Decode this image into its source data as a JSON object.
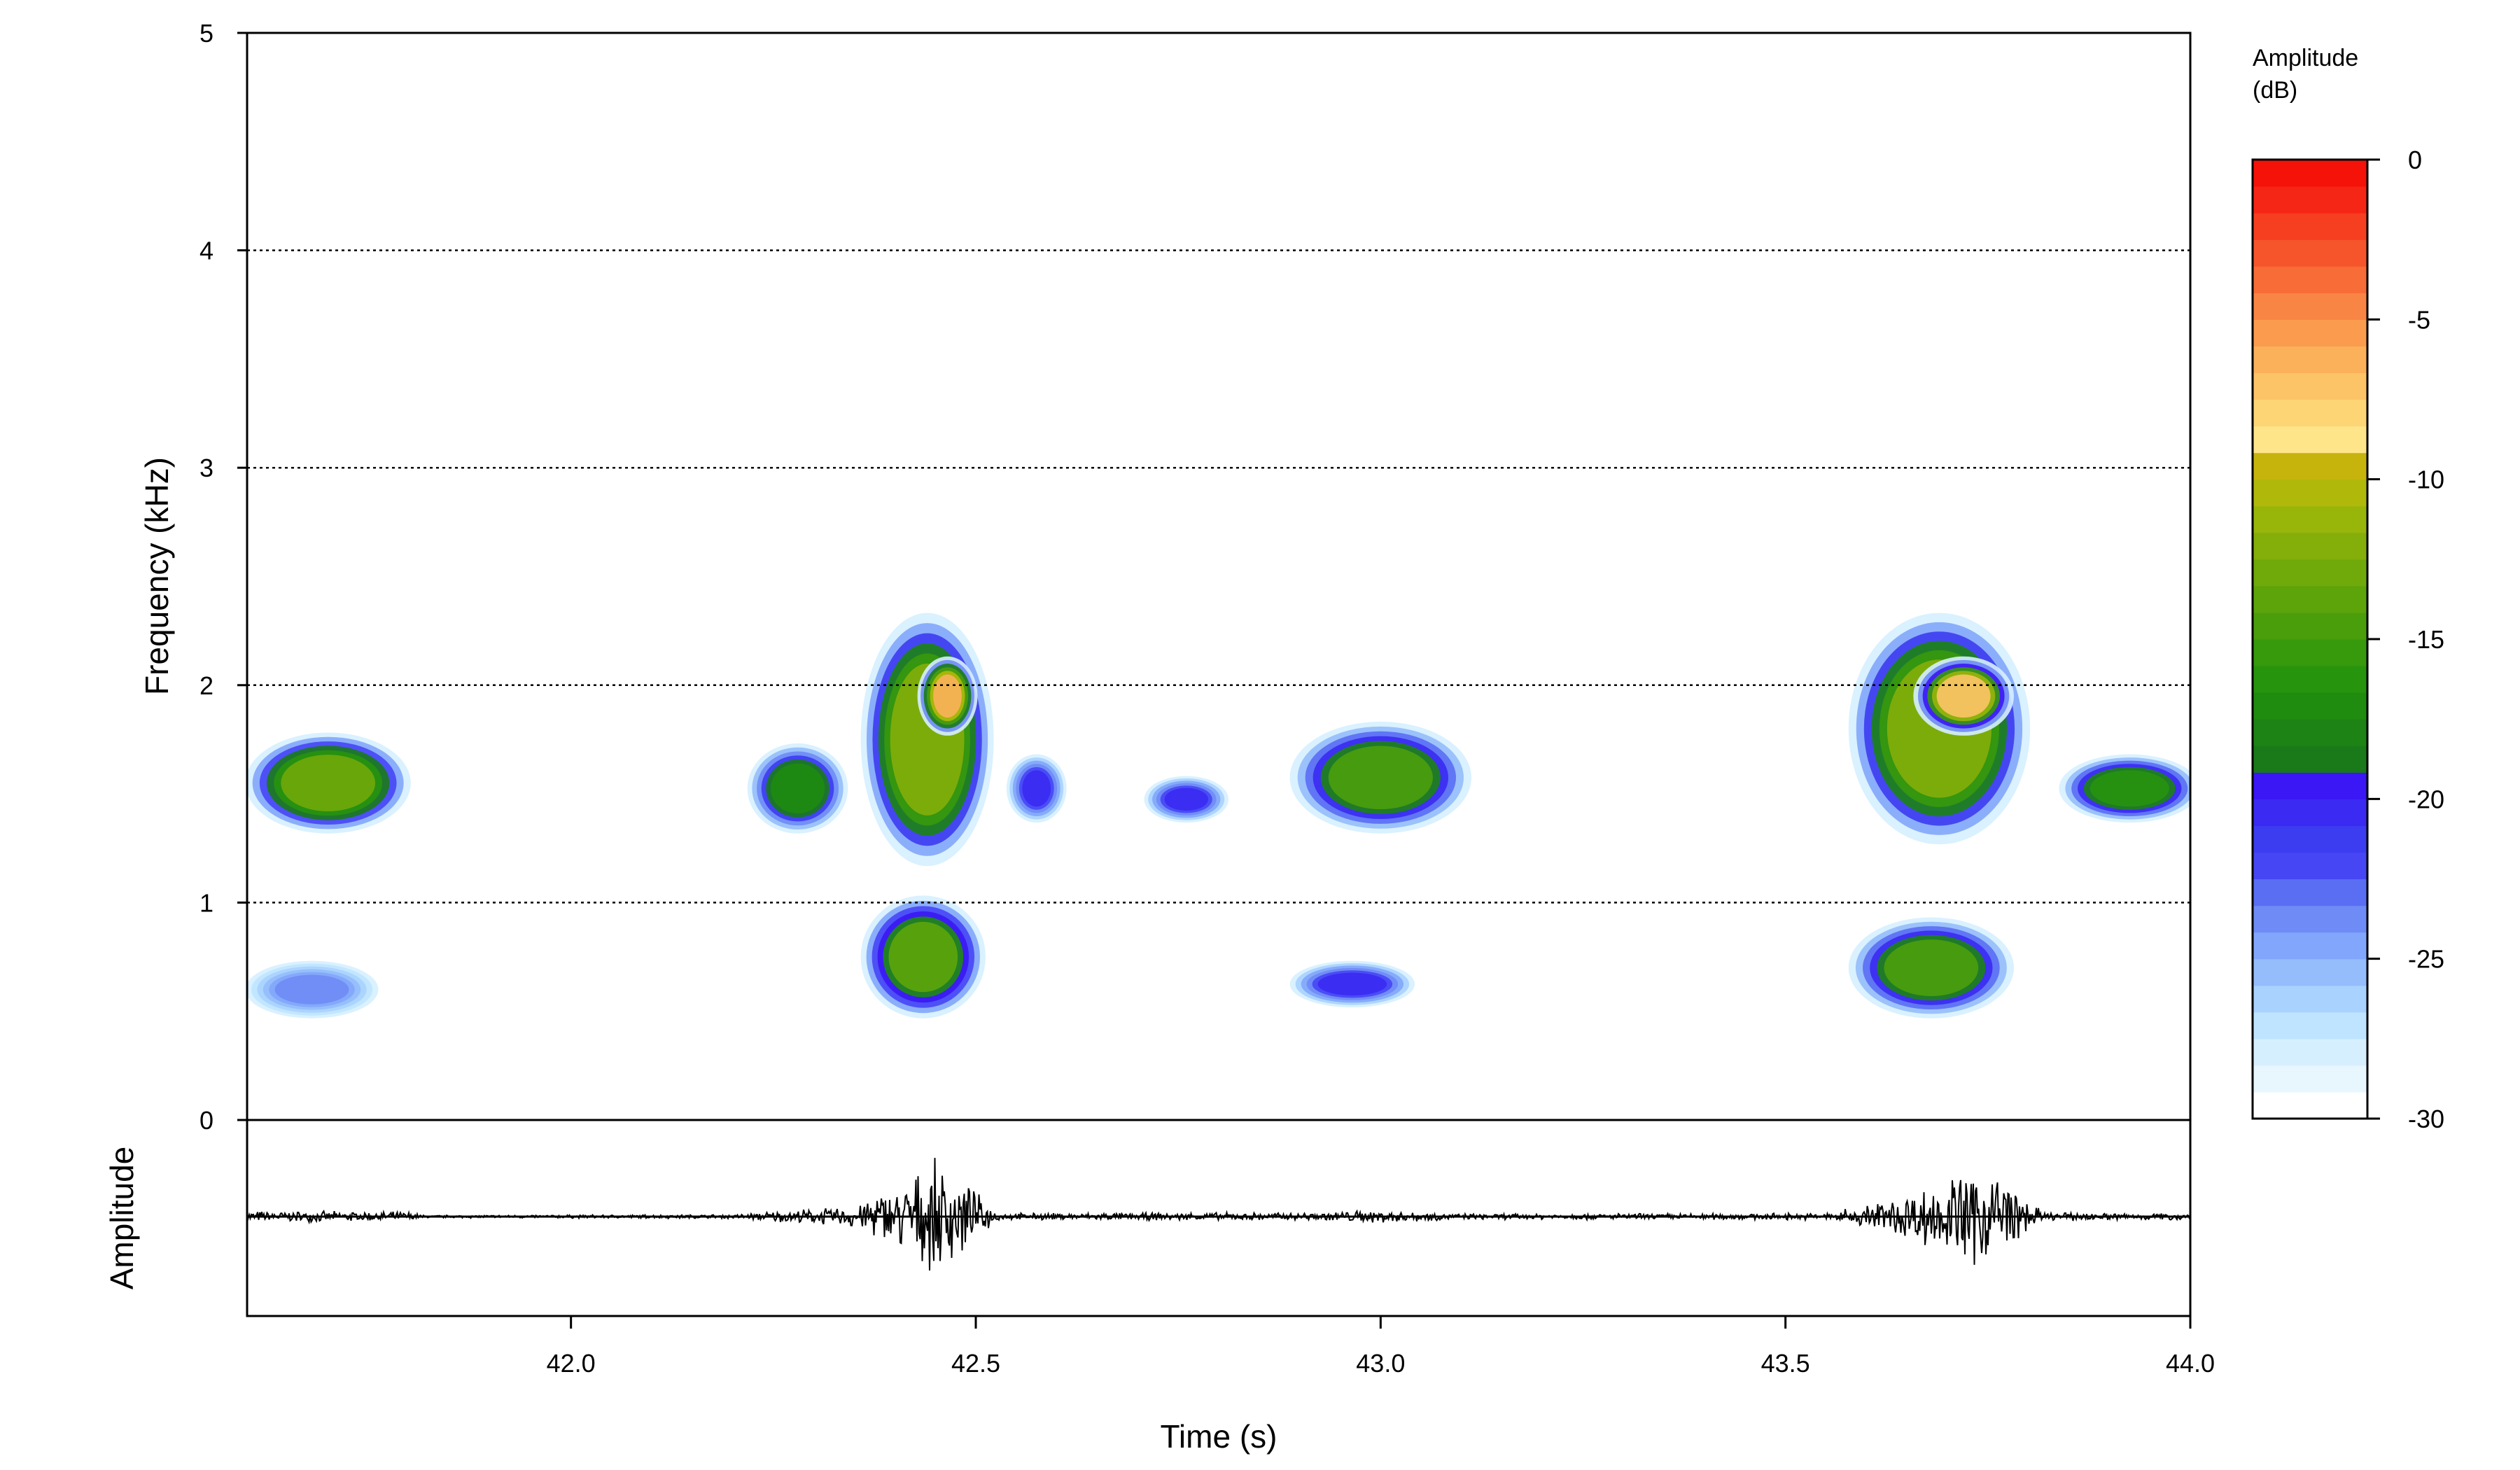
{
  "chart_data": {
    "type": "spectrogram",
    "xlabel": "Time (s)",
    "spectrogram": {
      "ylabel": "Frequency (kHz)",
      "ylim": [
        0,
        5
      ],
      "yticks": [
        "0",
        "1",
        "2",
        "3",
        "4",
        "5"
      ],
      "grid_lines_khz": [
        1,
        2,
        3,
        4
      ],
      "grid_style": "dotted horizontal"
    },
    "oscillogram": {
      "ylabel": "Amplitude"
    },
    "xlim": [
      41.6,
      44.0
    ],
    "xticks": [
      {
        "value": 42.0,
        "label": "42.0"
      },
      {
        "value": 42.5,
        "label": "42.5"
      },
      {
        "value": 43.0,
        "label": "43.0"
      },
      {
        "value": 43.5,
        "label": "43.5"
      },
      {
        "value": 44.0,
        "label": "44.0"
      }
    ],
    "colorbar": {
      "title_lines": [
        "Amplitude",
        "(dB)"
      ],
      "range": [
        -30,
        0
      ],
      "ticks": [
        "0",
        "-5",
        "-10",
        "-15",
        "-20",
        "-25",
        "-30"
      ],
      "tick_values": [
        0,
        -5,
        -10,
        -15,
        -20,
        -25,
        -30
      ],
      "levels": 30,
      "colors": [
        "#ffffff",
        "#e8f6fe",
        "#d6efff",
        "#bfe4ff",
        "#a9d2ff",
        "#95bcfb",
        "#82a6fb",
        "#6f8bf6",
        "#5a6ef4",
        "#4646f5",
        "#3c3cf0",
        "#3a2af2",
        "#3a17f4",
        "#1a7a1a",
        "#1c8314",
        "#1f8c10",
        "#27940e",
        "#37990c",
        "#4a9e0b",
        "#5da40b",
        "#70a90a",
        "#84ae0a",
        "#98b50a",
        "#b0b90a",
        "#c6b30c",
        "#ffe58a",
        "#fdd575",
        "#fcc466",
        "#fbb15a",
        "#fa9b4e",
        "#f98545",
        "#f76c37",
        "#f6552c",
        "#f63e20",
        "#f52615",
        "#f51209"
      ]
    },
    "hotspots_note": "",
    "energy_regions": [
      {
        "t0": 41.61,
        "t1": 41.79,
        "f0": 1.35,
        "f1": 1.75,
        "db": -13
      },
      {
        "t0": 41.61,
        "t1": 41.75,
        "f0": 0.5,
        "f1": 0.7,
        "db": -24
      },
      {
        "t0": 42.23,
        "t1": 42.33,
        "f0": 1.35,
        "f1": 1.7,
        "db": -17
      },
      {
        "t0": 42.37,
        "t1": 42.51,
        "f0": 1.2,
        "f1": 2.3,
        "db": -12
      },
      {
        "t0": 42.44,
        "t1": 42.49,
        "f0": 1.8,
        "f1": 2.1,
        "db": -6
      },
      {
        "t0": 42.37,
        "t1": 42.5,
        "f0": 0.5,
        "f1": 1.0,
        "db": -14
      },
      {
        "t0": 42.55,
        "t1": 42.6,
        "f0": 1.4,
        "f1": 1.65,
        "db": -21
      },
      {
        "t0": 42.72,
        "t1": 42.8,
        "f0": 1.4,
        "f1": 1.55,
        "db": -21
      },
      {
        "t0": 42.9,
        "t1": 43.1,
        "f0": 1.35,
        "f1": 1.8,
        "db": -15
      },
      {
        "t0": 42.9,
        "t1": 43.03,
        "f0": 0.55,
        "f1": 0.7,
        "db": -21
      },
      {
        "t0": 43.59,
        "t1": 43.79,
        "f0": 1.3,
        "f1": 2.3,
        "db": -12
      },
      {
        "t0": 43.67,
        "t1": 43.77,
        "f0": 1.8,
        "f1": 2.1,
        "db": -7
      },
      {
        "t0": 43.59,
        "t1": 43.77,
        "f0": 0.5,
        "f1": 0.9,
        "db": -15
      },
      {
        "t0": 43.85,
        "t1": 44.0,
        "f0": 1.4,
        "f1": 1.65,
        "db": -16
      }
    ],
    "waveform_envelope": [
      {
        "t": 41.6,
        "a": 0.08
      },
      {
        "t": 41.8,
        "a": 0.07
      },
      {
        "t": 41.82,
        "a": 0.02
      },
      {
        "t": 42.2,
        "a": 0.03
      },
      {
        "t": 42.25,
        "a": 0.08
      },
      {
        "t": 42.34,
        "a": 0.14
      },
      {
        "t": 42.4,
        "a": 0.45
      },
      {
        "t": 42.46,
        "a": 0.85
      },
      {
        "t": 42.5,
        "a": 0.35
      },
      {
        "t": 42.53,
        "a": 0.05
      },
      {
        "t": 42.9,
        "a": 0.06
      },
      {
        "t": 43.0,
        "a": 0.1
      },
      {
        "t": 43.1,
        "a": 0.04
      },
      {
        "t": 43.55,
        "a": 0.05
      },
      {
        "t": 43.62,
        "a": 0.25
      },
      {
        "t": 43.7,
        "a": 0.55
      },
      {
        "t": 43.76,
        "a": 0.9
      },
      {
        "t": 43.79,
        "a": 0.3
      },
      {
        "t": 43.82,
        "a": 0.06
      },
      {
        "t": 44.0,
        "a": 0.05
      }
    ]
  }
}
